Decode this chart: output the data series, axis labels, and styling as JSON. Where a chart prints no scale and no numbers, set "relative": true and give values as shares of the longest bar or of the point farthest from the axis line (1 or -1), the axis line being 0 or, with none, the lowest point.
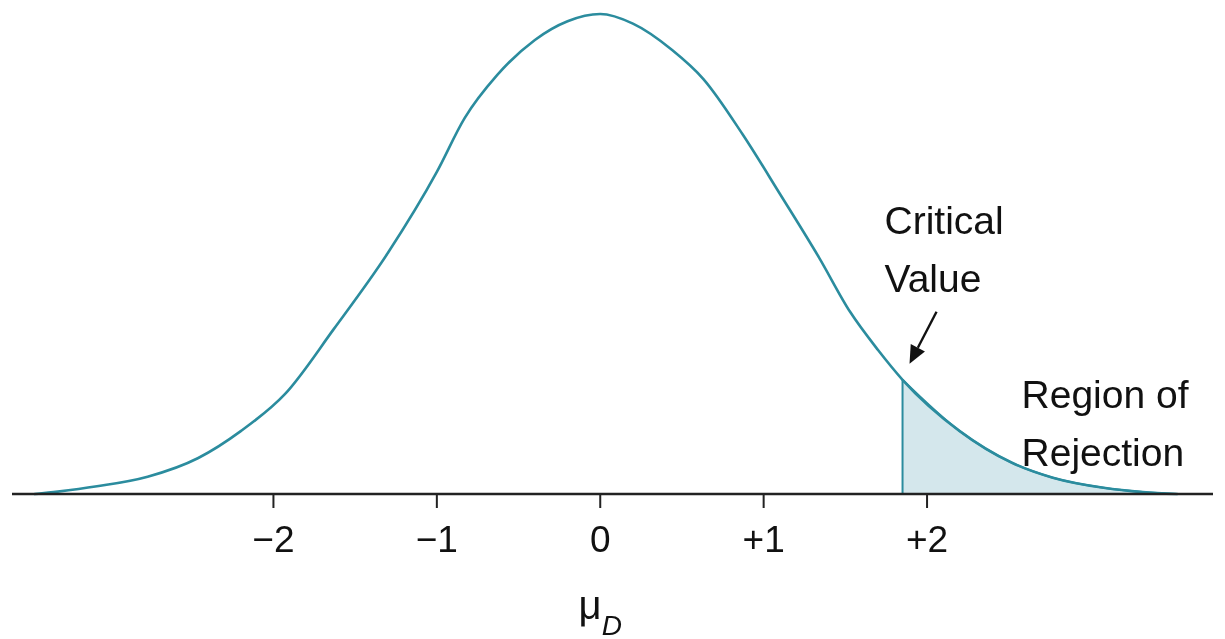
{
  "chart_data": {
    "type": "line",
    "xlabel": "μ$_{D}$",
    "relative": true,
    "xlim": [
      -3.6,
      3.75
    ],
    "xticks": [
      {
        "value": -2,
        "label": "−2"
      },
      {
        "value": -1,
        "label": "−1"
      },
      0,
      {
        "value": 1,
        "label": "+1"
      },
      {
        "value": 2,
        "label": "+2"
      }
    ],
    "series": [
      {
        "color": "#2b8c9e",
        "x": [
          -3.46,
          -3.32,
          -3.08,
          -2.77,
          -2.46,
          -2.2,
          -1.93,
          -1.63,
          -1.3,
          -1.0,
          -0.83,
          -0.63,
          -0.4,
          -0.2,
          0,
          0.2,
          0.44,
          0.63,
          0.87,
          1.1,
          1.34,
          1.53,
          1.7,
          1.85,
          2.2,
          2.52,
          2.77,
          3.08,
          3.32,
          3.53
        ],
        "values": [
          0,
          0.005,
          0.016,
          0.036,
          0.075,
          0.131,
          0.208,
          0.344,
          0.502,
          0.671,
          0.783,
          0.873,
          0.946,
          0.985,
          1,
          0.98,
          0.925,
          0.865,
          0.75,
          0.625,
          0.492,
          0.379,
          0.3,
          0.238,
          0.131,
          0.065,
          0.034,
          0.013,
          0.004,
          0
        ]
      },
      {
        "type": "area",
        "color": "#d4e7ec",
        "x": [
          1.85,
          2.2,
          2.52,
          2.77,
          3.08,
          3.32,
          3.53
        ],
        "values": [
          0.238,
          0.131,
          0.065,
          0.034,
          0.013,
          0.004,
          0
        ]
      }
    ],
    "annotations": [
      {
        "text": "Critical\nValue",
        "x": 1.85,
        "y": 0.238
      },
      "Region of\nRejection"
    ]
  }
}
